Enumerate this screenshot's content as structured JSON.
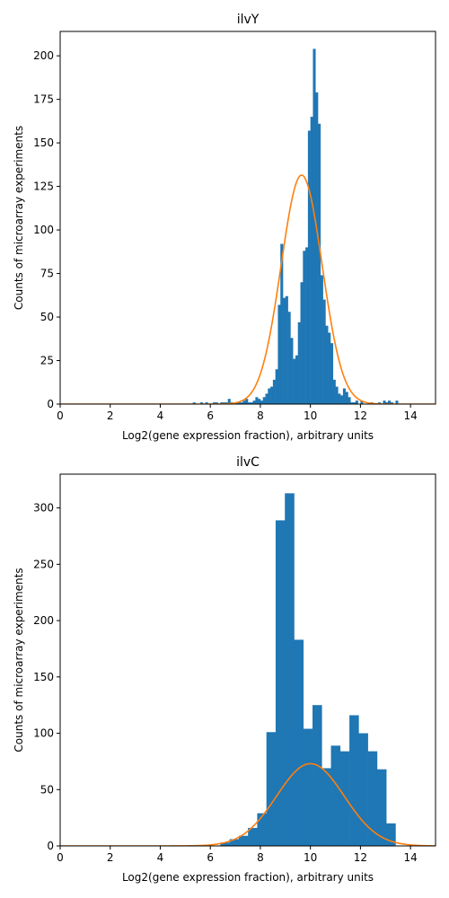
{
  "chart_data": [
    {
      "type": "histogram",
      "title": "ilvY",
      "xlabel": "Log2(gene expression fraction), arbitrary units",
      "ylabel": "Counts of microarray experiments",
      "xlim": [
        0,
        15
      ],
      "ylim": [
        0,
        214
      ],
      "xticks": [
        0,
        2,
        4,
        6,
        8,
        10,
        12,
        14
      ],
      "yticks": [
        0,
        25,
        50,
        75,
        100,
        125,
        150,
        175,
        200
      ],
      "grid": false,
      "bar_color": "#1f77b4",
      "bar_edges": [
        5.3,
        13.7
      ],
      "bar_values": [
        1,
        0,
        0,
        1,
        0,
        1,
        0,
        0,
        1,
        1,
        0,
        1,
        1,
        1,
        3,
        1,
        0,
        1,
        1,
        1,
        2,
        3,
        1,
        1,
        2,
        4,
        3,
        2,
        4,
        6,
        9,
        10,
        14,
        20,
        57,
        92,
        61,
        62,
        53,
        38,
        26,
        28,
        47,
        70,
        88,
        90,
        157,
        165,
        204,
        179,
        161,
        74,
        60,
        45,
        41,
        35,
        14,
        10,
        6,
        5,
        9,
        7,
        4,
        1,
        1,
        2,
        0,
        2,
        0,
        0,
        0,
        1,
        0,
        0,
        1,
        0,
        2,
        1,
        2,
        1,
        0,
        2,
        0,
        0
      ],
      "fit_curve": {
        "type": "gaussian",
        "mean": 9.65,
        "std": 0.82,
        "amplitude": 131.5,
        "color": "#ff7f0e"
      }
    },
    {
      "type": "histogram",
      "title": "ilvC",
      "xlabel": "Log2(gene expression fraction), arbitrary units",
      "ylabel": "Counts of microarray experiments",
      "xlim": [
        0,
        15
      ],
      "ylim": [
        0,
        330
      ],
      "xticks": [
        0,
        2,
        4,
        6,
        8,
        10,
        12,
        14
      ],
      "yticks": [
        0,
        50,
        100,
        150,
        200,
        250,
        300
      ],
      "grid": false,
      "bar_color": "#1f77b4",
      "bar_edges": [
        6.4,
        13.4
      ],
      "bar_values": [
        3,
        6,
        9,
        16,
        29,
        101,
        289,
        313,
        183,
        104,
        125,
        69,
        89,
        84,
        116,
        100,
        84,
        68,
        20
      ],
      "fit_curve": {
        "type": "gaussian",
        "mean": 10.0,
        "std": 1.35,
        "amplitude": 73,
        "color": "#ff7f0e"
      }
    }
  ]
}
